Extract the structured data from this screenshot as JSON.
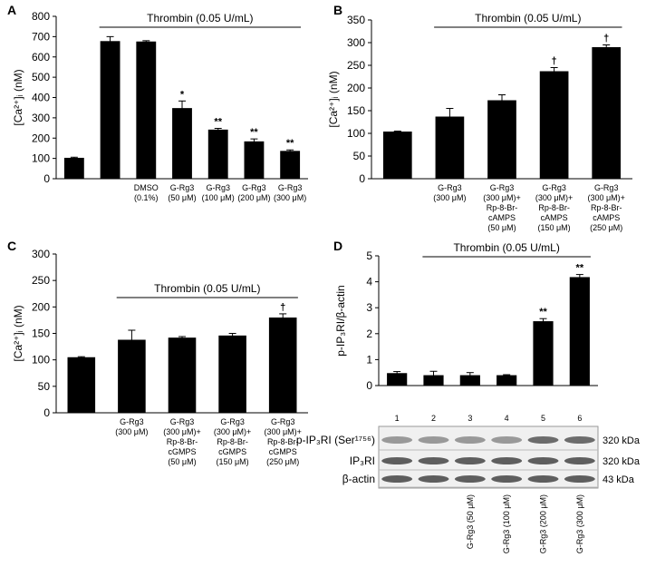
{
  "chart_data": [
    {
      "type": "bar",
      "panel": "A",
      "ylabel": "[Ca²⁺]ᵢ (nM)",
      "treatment_label": "Thrombin (0.05 U/mL)",
      "categories": [
        null,
        null,
        "DMSO\n(0.1%)",
        "G-Rg3\n(50 μM)",
        "G-Rg3\n(100 μM)",
        "G-Rg3\n(200 μM)",
        "G-Rg3\n(300 μM)"
      ],
      "values": [
        103,
        678,
        676,
        348,
        242,
        184,
        137
      ],
      "errors": [
        3,
        22,
        4,
        35,
        6,
        12,
        5
      ],
      "annotations": [
        null,
        null,
        null,
        "*",
        "**",
        "**",
        "**"
      ],
      "color": "#000000",
      "ylim": [
        0,
        800
      ],
      "yticks": [
        0,
        100,
        200,
        300,
        400,
        500,
        600,
        700,
        800
      ]
    },
    {
      "type": "bar",
      "panel": "B",
      "ylabel": "[Ca²⁺]ᵢ (nM)",
      "treatment_label": "Thrombin (0.05 U/mL)",
      "categories": [
        null,
        "G-Rg3\n(300 μM)",
        "G-Rg3\n(300 μM)+\nRp-8-Br-\ncAMPS\n(50 μM)",
        "G-Rg3\n(300 μM)+\nRp-8-Br-\ncAMPS\n(150 μM)",
        "G-Rg3\n(300 μM)+\nRp-8-Br-\ncAMPS\n(250 μM)"
      ],
      "values": [
        104,
        137,
        173,
        237,
        290
      ],
      "errors": [
        1,
        18,
        12,
        8,
        5
      ],
      "annotations": [
        null,
        null,
        null,
        "†",
        "†"
      ],
      "color": "#000000",
      "ylim": [
        0,
        350
      ],
      "yticks": [
        0,
        50,
        100,
        150,
        200,
        250,
        300,
        350
      ]
    },
    {
      "type": "bar",
      "panel": "C",
      "ylabel": "[Ca²⁺]ᵢ (nM)",
      "treatment_label": "Thrombin (0.05 U/mL)",
      "categories": [
        null,
        "G-Rg3\n(300 μM)",
        "G-Rg3\n(300 μM)+\nRp-8-Br-\ncGMPS\n(50 μM)",
        "G-Rg3\n(300 μM)+\nRp-8-Br-\ncGMPS\n(150 μM)",
        "G-Rg3\n(300 μM)+\nRp-8-Br-\ncGMPS\n(250 μM)"
      ],
      "values": [
        105,
        138,
        142,
        146,
        180
      ],
      "errors": [
        1,
        18,
        2,
        4,
        7
      ],
      "annotations": [
        null,
        null,
        null,
        null,
        "†"
      ],
      "color": "#000000",
      "ylim": [
        0,
        300
      ],
      "yticks": [
        0,
        50,
        100,
        150,
        200,
        250,
        300
      ]
    },
    {
      "type": "bar",
      "panel": "D",
      "ylabel": "p-IP₃RI/β-actin",
      "treatment_label": "Thrombin (0.05 U/mL)",
      "categories": [
        "1",
        "2",
        "3",
        "4",
        "5",
        "6"
      ],
      "values": [
        0.48,
        0.4,
        0.4,
        0.4,
        2.48,
        4.18
      ],
      "errors": [
        0.06,
        0.15,
        0.1,
        0.02,
        0.1,
        0.1
      ],
      "annotations": [
        null,
        null,
        null,
        null,
        "**",
        "**"
      ],
      "color": "#000000",
      "ylim": [
        0,
        5
      ],
      "yticks": [
        0,
        1,
        2,
        3,
        4,
        5
      ],
      "blot_rows": [
        {
          "label": "p-IP₃RI (Ser¹⁷⁵⁶)",
          "size": "320 kDa"
        },
        {
          "label": "IP₃RI",
          "size": "320 kDa"
        },
        {
          "label": "β-actin",
          "size": "43 kDa"
        }
      ],
      "lane_labels": [
        null,
        null,
        "G-Rg3 (50 μM)",
        "G-Rg3 (100 μM)",
        "G-Rg3 (200 μM)",
        "G-Rg3 (300 μM)"
      ]
    }
  ]
}
